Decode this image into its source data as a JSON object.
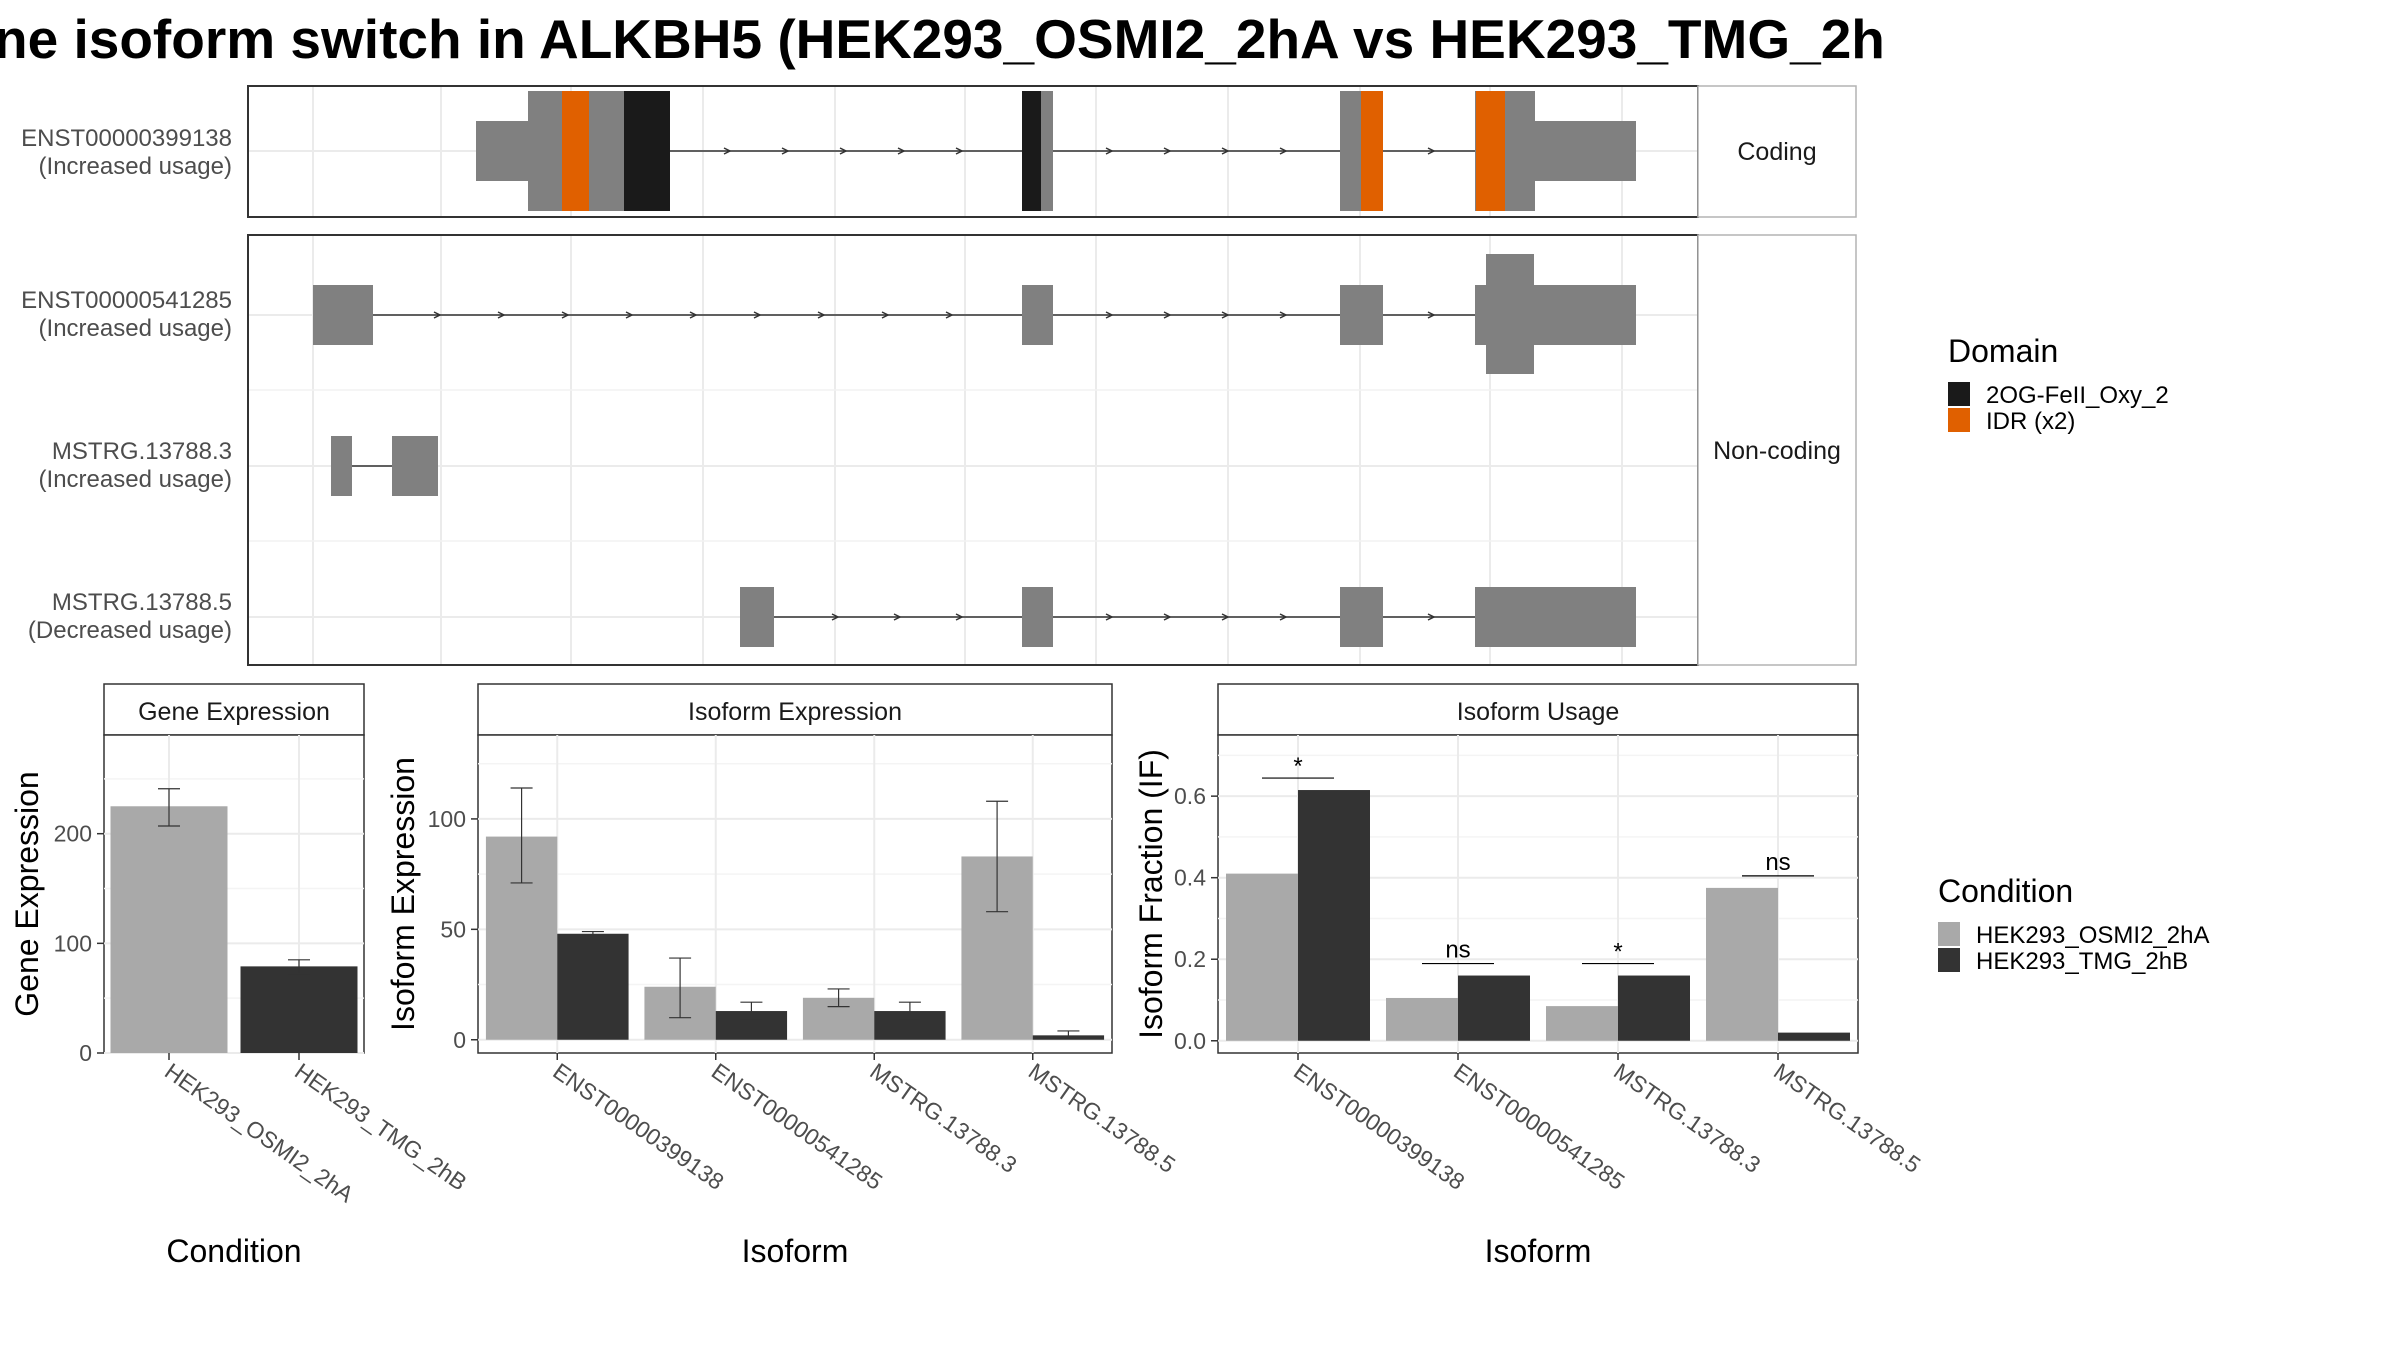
{
  "title": "ne isoform switch in ALKBH5 (HEK293_OSMI2_2hA vs HEK293_TMG_2h",
  "colors": {
    "domain": {
      "2OG-FeII_Oxy_2": "#1a1a1a",
      "IDR (x2)": "#e06000"
    },
    "exon": "#808080",
    "condition": {
      "HEK293_OSMI2_2hA": "#a9a9a9",
      "HEK293_TMG_2hB": "#333333"
    }
  },
  "transcript_panel": {
    "strips": {
      "coding": "Coding",
      "noncoding": "Non-coding"
    },
    "transcripts": [
      {
        "id": "ENST00000399138",
        "note": "(Increased usage)",
        "coding": true
      },
      {
        "id": "ENST00000541285",
        "note": "(Increased usage)",
        "coding": false
      },
      {
        "id": "MSTRG.13788.3",
        "note": "(Increased usage)",
        "coding": false
      },
      {
        "id": "MSTRG.13788.5",
        "note": "(Decreased usage)",
        "coding": false
      }
    ]
  },
  "legends": {
    "domain": {
      "title": "Domain",
      "items": [
        "2OG-FeII_Oxy_2",
        "IDR (x2)"
      ]
    },
    "condition": {
      "title": "Condition",
      "items": [
        "HEK293_OSMI2_2hA",
        "HEK293_TMG_2hB"
      ]
    }
  },
  "chart_data": [
    {
      "type": "bar",
      "title": "Gene Expression",
      "xlabel": "Condition",
      "ylabel": "Gene Expression",
      "categories": [
        "HEK293_OSMI2_2hA",
        "HEK293_TMG_2hB"
      ],
      "values": [
        225,
        79
      ],
      "error_low": [
        207,
        72
      ],
      "error_high": [
        241,
        85
      ],
      "ylim": [
        0,
        290
      ],
      "yticks": [
        0,
        100,
        200
      ]
    },
    {
      "type": "bar",
      "title": "Isoform Expression",
      "xlabel": "Isoform",
      "ylabel": "Isoform Expression",
      "categories": [
        "ENST00000399138",
        "ENST00000541285",
        "MSTRG.13788.3",
        "MSTRG.13788.5"
      ],
      "series": [
        {
          "name": "HEK293_OSMI2_2hA",
          "values": [
            92,
            24,
            19,
            83
          ],
          "error_low": [
            71,
            10,
            15,
            58
          ],
          "error_high": [
            114,
            37,
            23,
            108
          ]
        },
        {
          "name": "HEK293_TMG_2hB",
          "values": [
            48,
            13,
            13,
            2
          ],
          "error_low": [
            47,
            9,
            9,
            1
          ],
          "error_high": [
            49,
            17,
            17,
            4
          ]
        }
      ],
      "ylim": [
        -6,
        138
      ],
      "yticks": [
        0,
        50,
        100
      ]
    },
    {
      "type": "bar",
      "title": "Isoform Usage",
      "xlabel": "Isoform",
      "ylabel": "Isoform Fraction (IF)",
      "categories": [
        "ENST00000399138",
        "ENST00000541285",
        "MSTRG.13788.3",
        "MSTRG.13788.5"
      ],
      "series": [
        {
          "name": "HEK293_OSMI2_2hA",
          "values": [
            0.41,
            0.105,
            0.085,
            0.375
          ]
        },
        {
          "name": "HEK293_TMG_2hB",
          "values": [
            0.615,
            0.16,
            0.16,
            0.02
          ]
        }
      ],
      "significance": [
        "*",
        "ns",
        "*",
        "ns"
      ],
      "ylim": [
        -0.03,
        0.75
      ],
      "yticks": [
        0.0,
        0.2,
        0.4,
        0.6
      ],
      "ytick_labels": [
        "0.0",
        "0.2",
        "0.4",
        "0.6"
      ]
    }
  ]
}
